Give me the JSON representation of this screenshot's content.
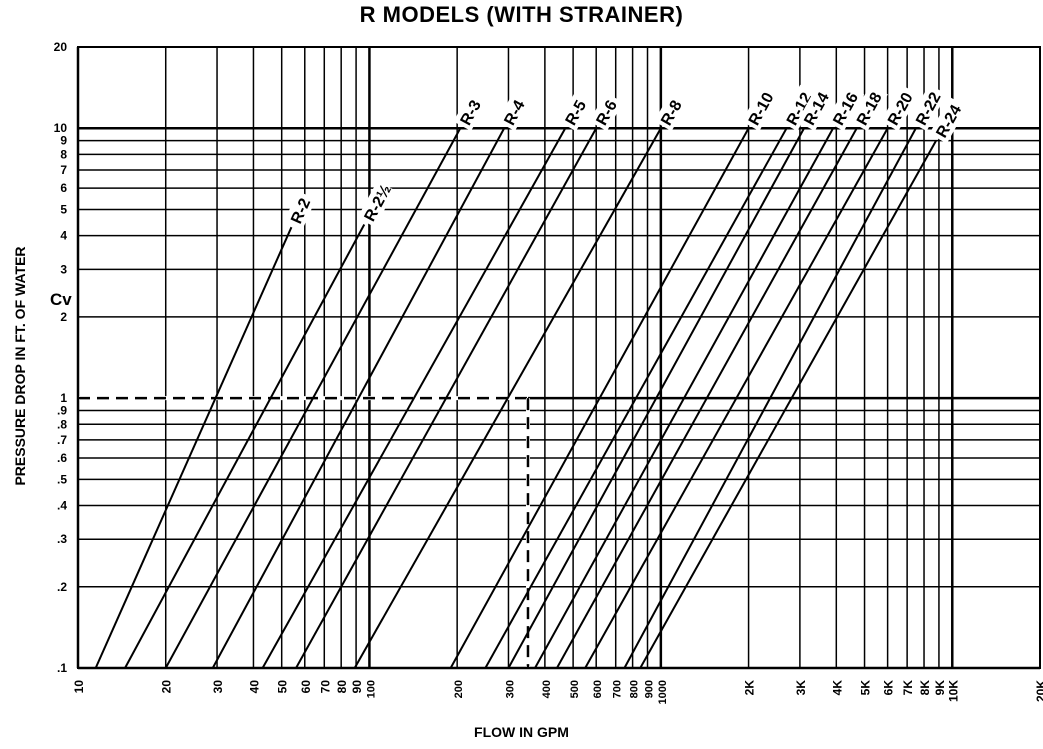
{
  "chart_data": {
    "type": "line",
    "title": "R MODELS (WITH STRAINER)",
    "xlabel": "FLOW IN GPM",
    "ylabel": "PRESSURE DROP IN FT. OF WATER",
    "cv_label": "Cv",
    "x_scale": "log",
    "y_scale": "log",
    "xlim": [
      10,
      20000
    ],
    "ylim": [
      0.1,
      20
    ],
    "grid": true,
    "x_ticks": [
      {
        "value": 10,
        "label": "10"
      },
      {
        "value": 20,
        "label": "20"
      },
      {
        "value": 30,
        "label": "30"
      },
      {
        "value": 40,
        "label": "40"
      },
      {
        "value": 50,
        "label": "50"
      },
      {
        "value": 60,
        "label": "60"
      },
      {
        "value": 70,
        "label": "70"
      },
      {
        "value": 80,
        "label": "80"
      },
      {
        "value": 90,
        "label": "90"
      },
      {
        "value": 100,
        "label": "100"
      },
      {
        "value": 200,
        "label": "200"
      },
      {
        "value": 300,
        "label": "300"
      },
      {
        "value": 400,
        "label": "400"
      },
      {
        "value": 500,
        "label": "500"
      },
      {
        "value": 600,
        "label": "600"
      },
      {
        "value": 700,
        "label": "700"
      },
      {
        "value": 800,
        "label": "800"
      },
      {
        "value": 900,
        "label": "900"
      },
      {
        "value": 1000,
        "label": "1000"
      },
      {
        "value": 2000,
        "label": "2K"
      },
      {
        "value": 3000,
        "label": "3K"
      },
      {
        "value": 4000,
        "label": "4K"
      },
      {
        "value": 5000,
        "label": "5K"
      },
      {
        "value": 6000,
        "label": "6K"
      },
      {
        "value": 7000,
        "label": "7K"
      },
      {
        "value": 8000,
        "label": "8K"
      },
      {
        "value": 9000,
        "label": "9K"
      },
      {
        "value": 10000,
        "label": "10K"
      },
      {
        "value": 20000,
        "label": "20K"
      }
    ],
    "y_ticks": [
      {
        "value": 0.1,
        "label": ".1"
      },
      {
        "value": 0.2,
        "label": ".2"
      },
      {
        "value": 0.3,
        "label": ".3"
      },
      {
        "value": 0.4,
        "label": ".4"
      },
      {
        "value": 0.5,
        "label": ".5"
      },
      {
        "value": 0.6,
        "label": ".6"
      },
      {
        "value": 0.7,
        "label": ".7"
      },
      {
        "value": 0.8,
        "label": ".8"
      },
      {
        "value": 0.9,
        "label": ".9"
      },
      {
        "value": 1,
        "label": "1"
      },
      {
        "value": 2,
        "label": "2"
      },
      {
        "value": 3,
        "label": "3"
      },
      {
        "value": 4,
        "label": "4"
      },
      {
        "value": 5,
        "label": "5"
      },
      {
        "value": 6,
        "label": "6"
      },
      {
        "value": 7,
        "label": "7"
      },
      {
        "value": 8,
        "label": "8"
      },
      {
        "value": 9,
        "label": "9"
      },
      {
        "value": 10,
        "label": "10"
      },
      {
        "value": 20,
        "label": "20"
      }
    ],
    "reference_lines": [
      {
        "orientation": "horizontal",
        "value": 1,
        "style": "dashed"
      },
      {
        "orientation": "vertical",
        "value": 350,
        "style": "dashed"
      }
    ],
    "series": [
      {
        "name": "R-2",
        "x": [
          11.5,
          54
        ],
        "y": [
          0.1,
          4.3
        ]
      },
      {
        "name": "R-21/2",
        "x": [
          14.5,
          96
        ],
        "y": [
          0.1,
          4.4
        ]
      },
      {
        "name": "R-3",
        "x": [
          20,
          205
        ],
        "y": [
          0.1,
          10
        ]
      },
      {
        "name": "R-4",
        "x": [
          29,
          290
        ],
        "y": [
          0.1,
          10
        ]
      },
      {
        "name": "R-5",
        "x": [
          43,
          470
        ],
        "y": [
          0.1,
          10
        ]
      },
      {
        "name": "R-6",
        "x": [
          56,
          600
        ],
        "y": [
          0.1,
          10
        ]
      },
      {
        "name": "R-8",
        "x": [
          89,
          1000
        ],
        "y": [
          0.1,
          10
        ]
      },
      {
        "name": "R-10",
        "x": [
          190,
          2000
        ],
        "y": [
          0.1,
          10
        ]
      },
      {
        "name": "R-12",
        "x": [
          250,
          2700
        ],
        "y": [
          0.1,
          10
        ]
      },
      {
        "name": "R-14",
        "x": [
          300,
          3100
        ],
        "y": [
          0.1,
          10
        ]
      },
      {
        "name": "R-16",
        "x": [
          370,
          3900
        ],
        "y": [
          0.1,
          10
        ]
      },
      {
        "name": "R-18",
        "x": [
          440,
          4700
        ],
        "y": [
          0.1,
          10
        ]
      },
      {
        "name": "R-20",
        "x": [
          550,
          6000
        ],
        "y": [
          0.1,
          10
        ]
      },
      {
        "name": "R-22",
        "x": [
          750,
          7500
        ],
        "y": [
          0.1,
          10
        ]
      },
      {
        "name": "R-24",
        "x": [
          850,
          8800
        ],
        "y": [
          0.1,
          9
        ]
      }
    ]
  }
}
